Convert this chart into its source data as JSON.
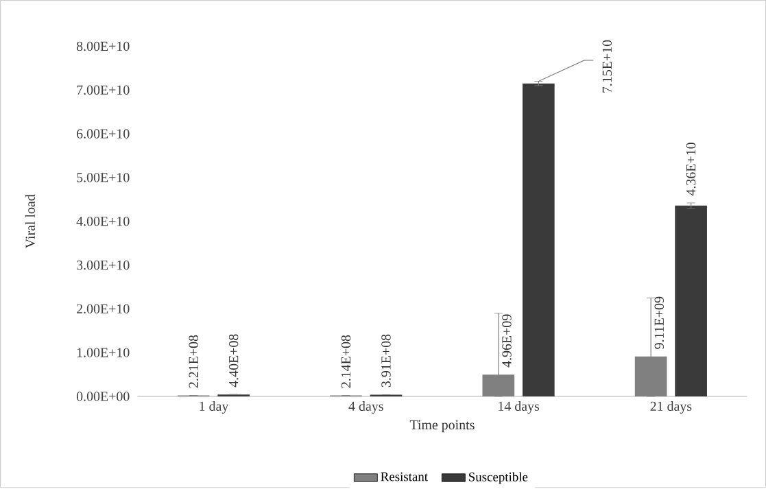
{
  "chart_data": {
    "type": "bar",
    "xlabel": "Time points",
    "ylabel": "Viral load",
    "categories": [
      "1 day",
      "4 days",
      "14 days",
      "21 days"
    ],
    "series": [
      {
        "name": "Resistant",
        "color": "#808080",
        "values": [
          221000000.0,
          214000000.0,
          4960000000.0,
          9110000000.0
        ],
        "value_labels": [
          "2.21E+08",
          "2.14E+08",
          "4.96E+09",
          "9.11E+09"
        ],
        "errors": [
          null,
          null,
          [
            0,
            19000000000.0
          ],
          [
            0,
            22500000000.0
          ]
        ]
      },
      {
        "name": "Susceptible",
        "color": "#3a3a3a",
        "values": [
          440000000.0,
          391000000.0,
          71500000000.0,
          43600000000.0
        ],
        "value_labels": [
          "4.40E+08",
          "3.91E+08",
          "7.15E+10",
          "4.36E+10"
        ],
        "errors": [
          null,
          null,
          500000000.0,
          600000000.0
        ]
      }
    ],
    "ylim": [
      0,
      80000000000.0
    ],
    "yticks": [
      {
        "value": 0,
        "label": "0.00E+00"
      },
      {
        "value": 10000000000.0,
        "label": "1.00E+10"
      },
      {
        "value": 20000000000.0,
        "label": "2.00E+10"
      },
      {
        "value": 30000000000.0,
        "label": "3.00E+10"
      },
      {
        "value": 40000000000.0,
        "label": "4.00E+10"
      },
      {
        "value": 50000000000.0,
        "label": "5.00E+10"
      },
      {
        "value": 60000000000.0,
        "label": "6.00E+10"
      },
      {
        "value": 70000000000.0,
        "label": "7.00E+10"
      },
      {
        "value": 80000000000.0,
        "label": "8.00E+10"
      }
    ],
    "legend": "bottom"
  }
}
